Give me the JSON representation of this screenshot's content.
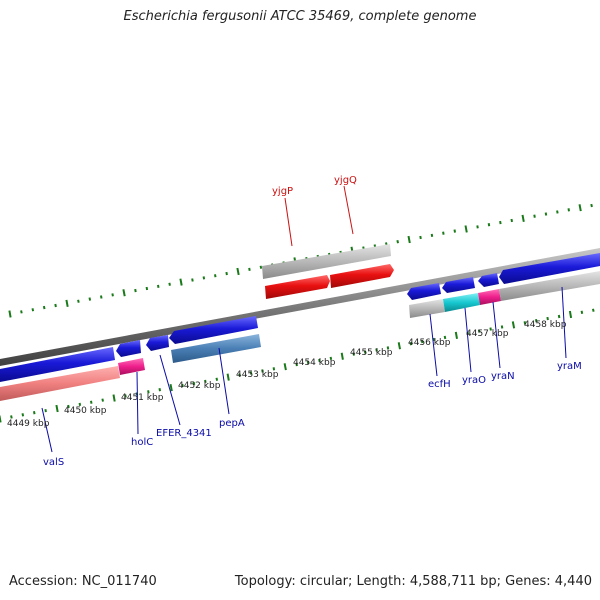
{
  "title": "Escherichia fergusonii ATCC 35469, complete genome",
  "footer": {
    "accession": "Accession: NC_011740",
    "stats": "Topology: circular; Length: 4,588,711 bp; Genes: 4,440"
  },
  "colors": {
    "forward_gene": "#1a1ad8",
    "rev_gene": "#e81010",
    "pseudo_gray": "#b8b8b8",
    "rrna_pink": "#f08080",
    "trna_magenta": "#ee1f8c",
    "steel_blue": "#4a7fb5",
    "cyan": "#18c8d0",
    "label_blue": "#0a0aa8",
    "label_red": "#cc1010",
    "tick_green": "#1a7a1a"
  },
  "scale_labels": [
    "4449 kbp",
    "4450 kbp",
    "4451 kbp",
    "4452 kbp",
    "4453 kbp",
    "4454 kbp",
    "4455 kbp",
    "4456 kbp",
    "4457 kbp",
    "4458 kbp"
  ],
  "genes": [
    {
      "name": "valS",
      "color": "label_blue"
    },
    {
      "name": "holC",
      "color": "label_blue"
    },
    {
      "name": "EFER_4341",
      "color": "label_blue"
    },
    {
      "name": "pepA",
      "color": "label_blue"
    },
    {
      "name": "ecfH",
      "color": "label_blue"
    },
    {
      "name": "yraO",
      "color": "label_blue"
    },
    {
      "name": "yraN",
      "color": "label_blue"
    },
    {
      "name": "yraM",
      "color": "label_blue"
    },
    {
      "name": "yjgP",
      "color": "label_red"
    },
    {
      "name": "yjgQ",
      "color": "label_red"
    }
  ]
}
